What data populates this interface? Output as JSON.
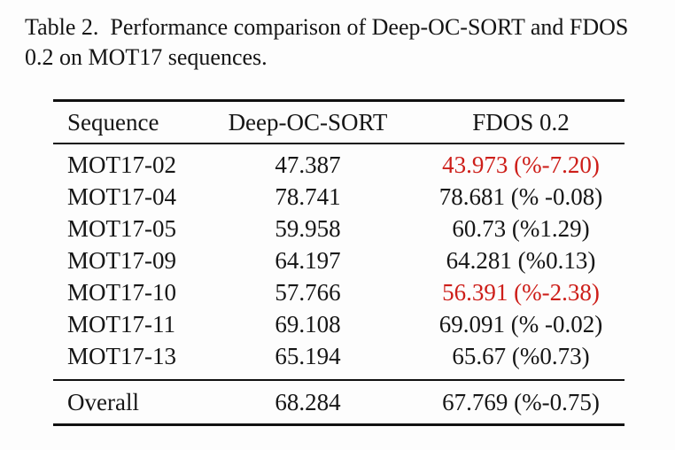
{
  "caption": {
    "line1": "Table 2.  Performance comparison of Deep-OC-SORT and FDOS",
    "line2": "0.2 on MOT17 sequences."
  },
  "table": {
    "columns": [
      "Sequence",
      "Deep-OC-SORT",
      "FDOS 0.2"
    ],
    "rows": [
      {
        "sequence": "MOT17-02",
        "deep_oc_sort": "47.387",
        "fdos": "43.973 (%-7.20)",
        "highlight": true
      },
      {
        "sequence": "MOT17-04",
        "deep_oc_sort": "78.741",
        "fdos": "78.681 (% -0.08)",
        "highlight": false
      },
      {
        "sequence": "MOT17-05",
        "deep_oc_sort": "59.958",
        "fdos": "60.73 (%1.29)",
        "highlight": false
      },
      {
        "sequence": "MOT17-09",
        "deep_oc_sort": "64.197",
        "fdos": "64.281 (%0.13)",
        "highlight": false
      },
      {
        "sequence": "MOT17-10",
        "deep_oc_sort": "57.766",
        "fdos": "56.391 (%-2.38)",
        "highlight": true
      },
      {
        "sequence": "MOT17-11",
        "deep_oc_sort": "69.108",
        "fdos": "69.091 (% -0.02)",
        "highlight": false
      },
      {
        "sequence": "MOT17-13",
        "deep_oc_sort": "65.194",
        "fdos": "65.67 (%0.73)",
        "highlight": false
      }
    ],
    "footer": {
      "sequence": "Overall",
      "deep_oc_sort": "68.284",
      "fdos": "67.769 (%-0.75)"
    }
  },
  "colors": {
    "negative_highlight": "#cd1e19",
    "text": "#161616"
  }
}
